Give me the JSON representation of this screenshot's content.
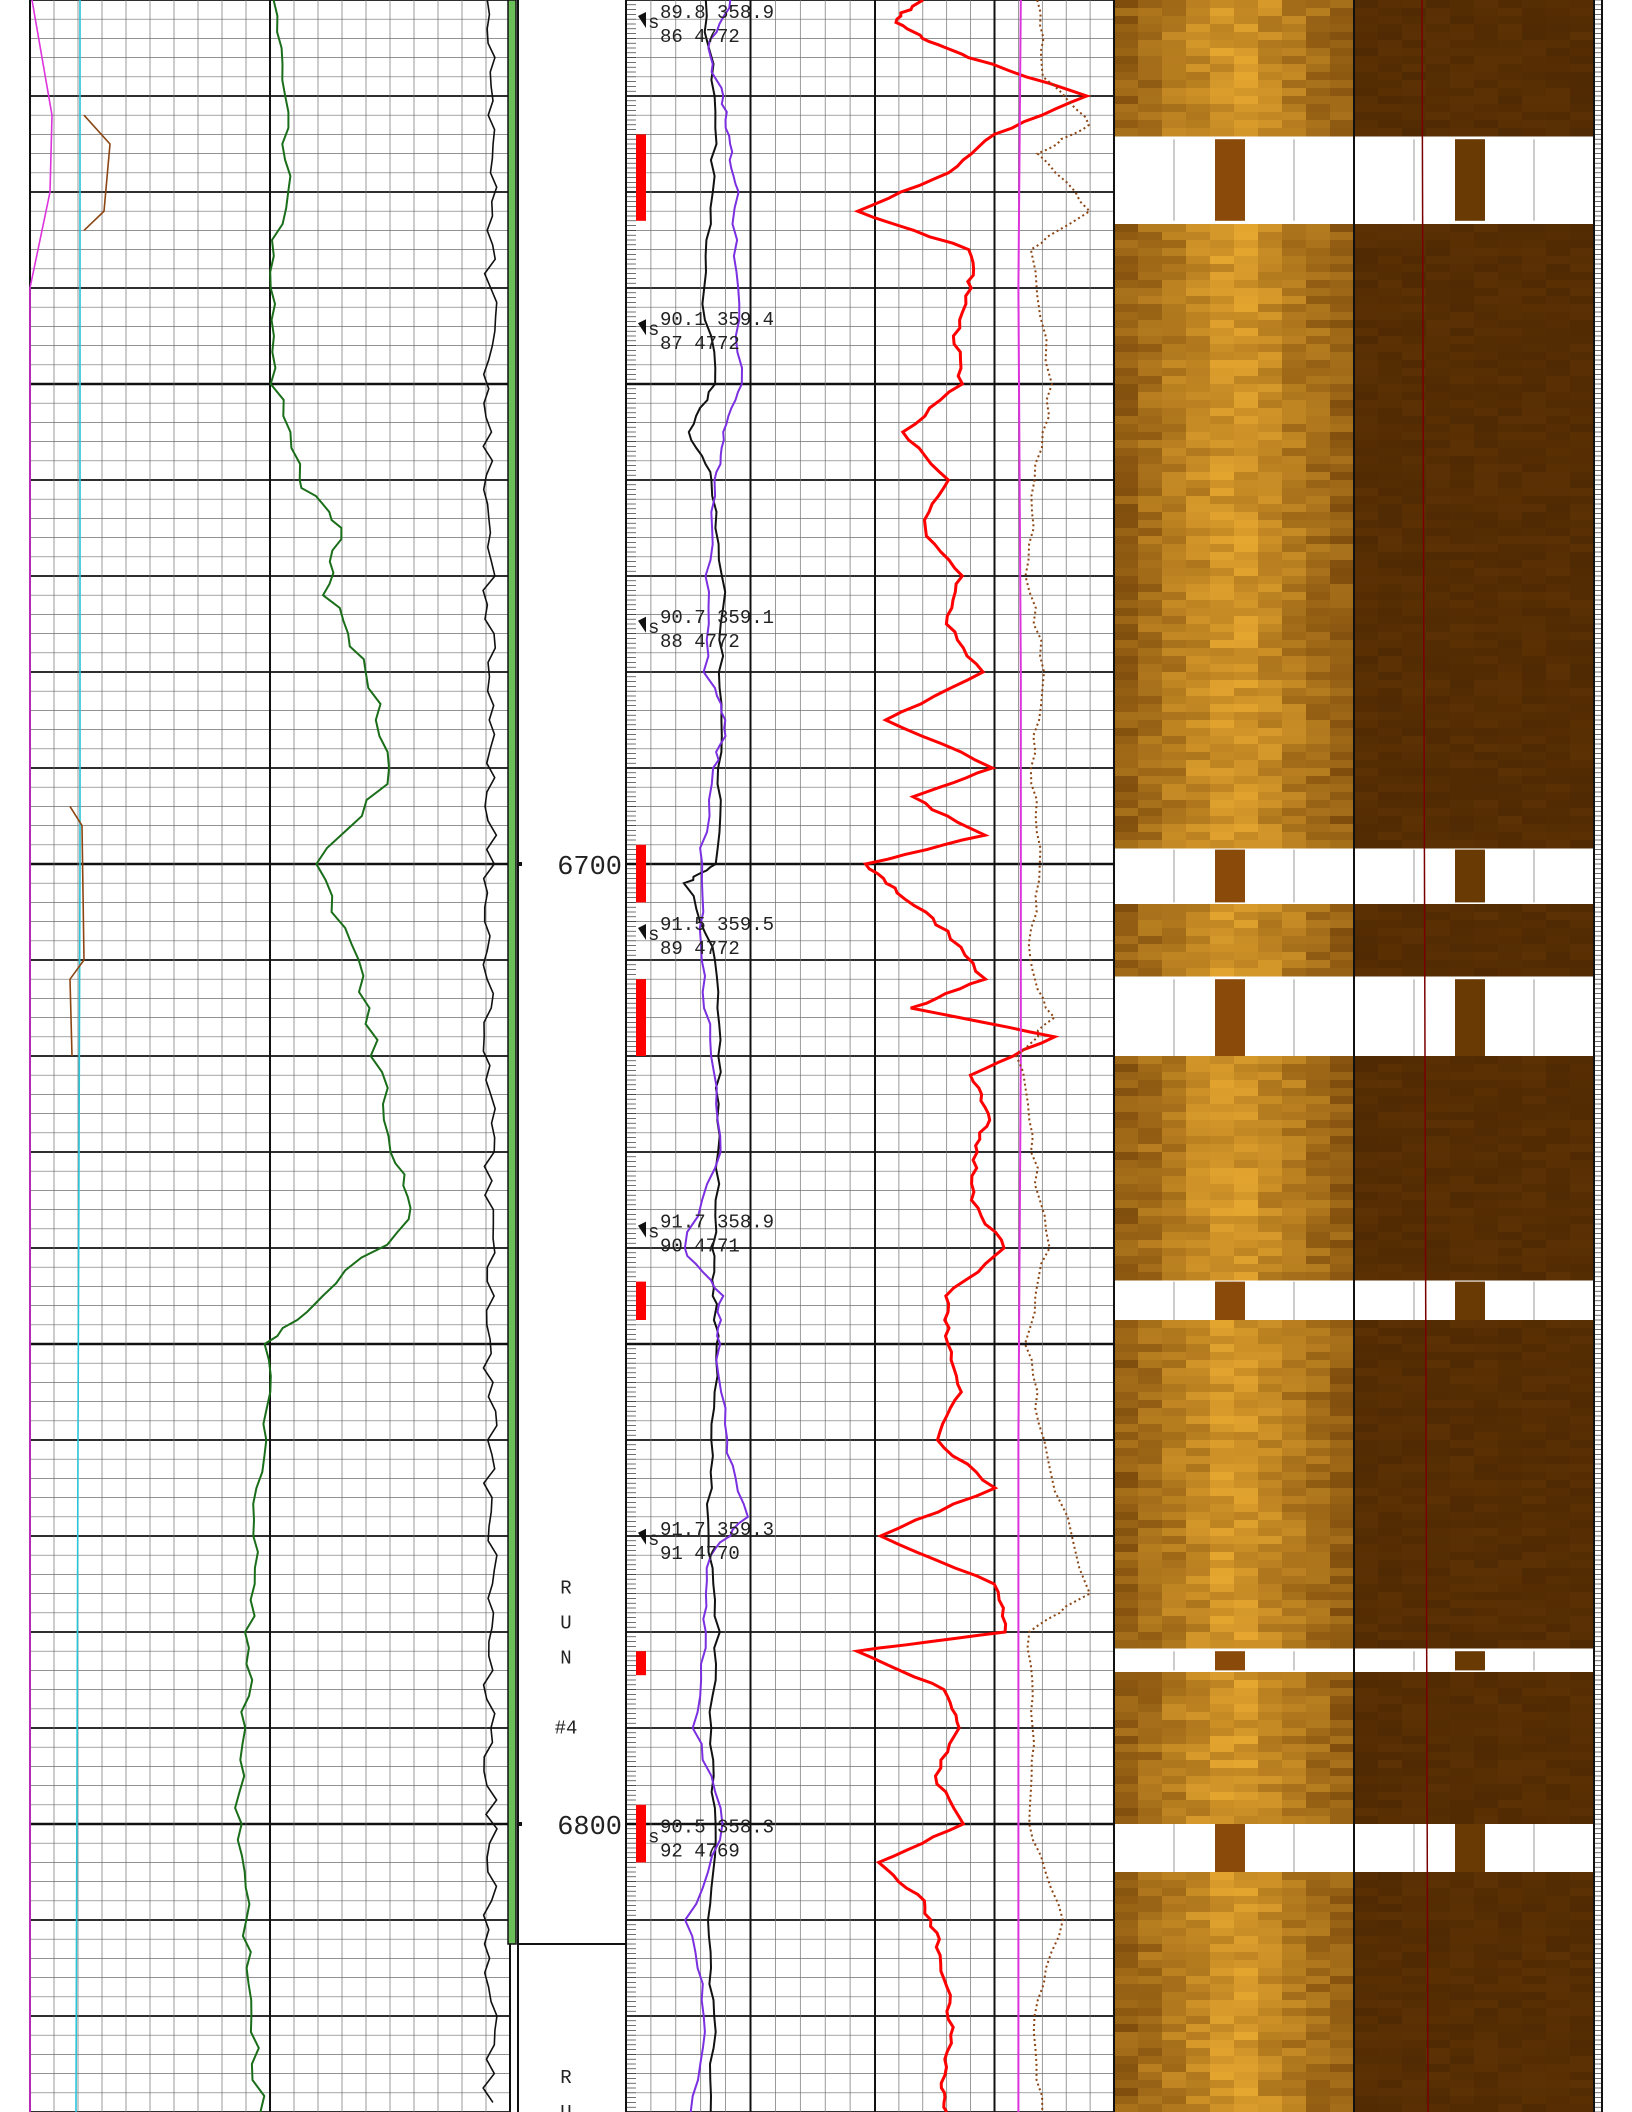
{
  "chart_data": {
    "type": "line",
    "title": "",
    "depth_range": [
      6610,
      6830
    ],
    "depth_labels": [
      {
        "depth": 6700,
        "text": "6700"
      },
      {
        "depth": 6800,
        "text": "6800"
      }
    ],
    "run_labels": [
      {
        "depth": 6776,
        "text": [
          "R",
          "U",
          "N",
          "",
          "#4"
        ]
      },
      {
        "depth": 6827,
        "text": [
          "R",
          "U"
        ]
      }
    ],
    "run_boundary_depth": 6812.5,
    "surveys": [
      {
        "depth": 6612.5,
        "incl": "89.8",
        "azim": "358.9",
        "num": "86",
        "tvd": "4772"
      },
      {
        "depth": 6644.5,
        "incl": "90.1",
        "azim": "359.4",
        "num": "87",
        "tvd": "4772"
      },
      {
        "depth": 6675.5,
        "incl": "90.7",
        "azim": "359.1",
        "num": "88",
        "tvd": "4772"
      },
      {
        "depth": 6707.5,
        "incl": "91.5",
        "azim": "359.5",
        "num": "89",
        "tvd": "4772"
      },
      {
        "depth": 6738.5,
        "incl": "91.7",
        "azim": "358.9",
        "num": "90",
        "tvd": "4771"
      },
      {
        "depth": 6770.5,
        "incl": "91.7",
        "azim": "359.3",
        "num": "91",
        "tvd": "4770"
      },
      {
        "depth": 6801.5,
        "incl": "90.5",
        "azim": "358.3",
        "num": "92",
        "tvd": "4769"
      }
    ],
    "flag_intervals": [
      [
        6624,
        6633
      ],
      [
        6698,
        6704
      ],
      [
        6712,
        6720
      ],
      [
        6743.5,
        6747.5
      ],
      [
        6782,
        6784.5
      ],
      [
        6798,
        6804
      ]
    ],
    "image_gaps": [
      [
        6624.5,
        6633
      ],
      [
        6698.5,
        6704
      ],
      [
        6712,
        6720
      ],
      [
        6743.5,
        6747.5
      ],
      [
        6782,
        6784
      ],
      [
        6800,
        6805
      ]
    ],
    "colors": {
      "grid": "#6f6f6f",
      "grid_major": "#111111",
      "gamma_green": "#1a6e1a",
      "cyan": "#28c4d8",
      "magenta": "#dd33dd",
      "brown": "#8b4513",
      "red": "#ff0000",
      "purple": "#7a2fe0",
      "black": "#111111",
      "image_dark": "#6a3a05",
      "image_light": "#f5b435"
    },
    "series": [
      {
        "track": 1,
        "color": "#1a6e1a",
        "values": [
          [
            6610,
            5.2
          ],
          [
            6620,
            5.4
          ],
          [
            6630,
            5.3
          ],
          [
            6640,
            5.0
          ],
          [
            6650,
            5.1
          ],
          [
            6660,
            5.6
          ],
          [
            6665,
            6.5
          ],
          [
            6672,
            6.2
          ],
          [
            6680,
            7.0
          ],
          [
            6690,
            7.6
          ],
          [
            6700,
            6.0
          ],
          [
            6710,
            6.8
          ],
          [
            6720,
            7.2
          ],
          [
            6730,
            7.6
          ],
          [
            6737,
            8.0
          ],
          [
            6745,
            6.0
          ],
          [
            6750,
            5.0
          ],
          [
            6760,
            4.8
          ],
          [
            6770,
            4.7
          ],
          [
            6780,
            4.6
          ],
          [
            6790,
            4.5
          ],
          [
            6800,
            4.3
          ],
          [
            6810,
            4.5
          ],
          [
            6820,
            4.6
          ],
          [
            6830,
            4.8
          ]
        ]
      },
      {
        "track": 2,
        "color": "#111111",
        "values": [
          [
            6610,
            3.1
          ],
          [
            6620,
            3.6
          ],
          [
            6630,
            3.5
          ],
          [
            6640,
            3.1
          ],
          [
            6650,
            3.6
          ],
          [
            6655,
            2.4
          ],
          [
            6660,
            3.5
          ],
          [
            6670,
            3.9
          ],
          [
            6680,
            3.8
          ],
          [
            6690,
            3.8
          ],
          [
            6700,
            3.6
          ],
          [
            6702,
            2.4
          ],
          [
            6710,
            3.6
          ],
          [
            6720,
            3.7
          ],
          [
            6730,
            3.7
          ],
          [
            6740,
            3.5
          ],
          [
            6745,
            3.6
          ],
          [
            6750,
            3.7
          ],
          [
            6760,
            3.5
          ],
          [
            6770,
            3.3
          ],
          [
            6780,
            3.7
          ],
          [
            6790,
            3.4
          ],
          [
            6800,
            3.5
          ],
          [
            6810,
            3.4
          ],
          [
            6820,
            3.5
          ],
          [
            6830,
            3.4
          ]
        ]
      },
      {
        "track": 2,
        "color": "#7a2fe0",
        "values": [
          [
            6610,
            4.3
          ],
          [
            6615,
            3.3
          ],
          [
            6620,
            3.8
          ],
          [
            6625,
            4.2
          ],
          [
            6630,
            4.4
          ],
          [
            6640,
            4.4
          ],
          [
            6650,
            4.6
          ],
          [
            6655,
            4.0
          ],
          [
            6660,
            3.6
          ],
          [
            6670,
            3.3
          ],
          [
            6680,
            3.2
          ],
          [
            6685,
            4.1
          ],
          [
            6690,
            3.5
          ],
          [
            6700,
            3.0
          ],
          [
            6710,
            3.1
          ],
          [
            6720,
            3.4
          ],
          [
            6730,
            3.8
          ],
          [
            6740,
            2.3
          ],
          [
            6745,
            3.8
          ],
          [
            6750,
            3.7
          ],
          [
            6760,
            4.0
          ],
          [
            6768,
            4.9
          ],
          [
            6772,
            3.3
          ],
          [
            6780,
            3.2
          ],
          [
            6790,
            2.8
          ],
          [
            6800,
            3.9
          ],
          [
            6810,
            2.5
          ],
          [
            6820,
            3.2
          ],
          [
            6830,
            2.6
          ]
        ]
      },
      {
        "track": 3,
        "color": "#ff0000",
        "values": [
          [
            6610,
            2.0
          ],
          [
            6612,
            0.8
          ],
          [
            6614,
            2.0
          ],
          [
            6616,
            4.0
          ],
          [
            6620,
            8.8
          ],
          [
            6624,
            5.0
          ],
          [
            6628,
            3.0
          ],
          [
            6632,
            -0.8
          ],
          [
            6636,
            4.0
          ],
          [
            6640,
            4.0
          ],
          [
            6645,
            3.4
          ],
          [
            6650,
            3.6
          ],
          [
            6655,
            1.2
          ],
          [
            6660,
            3.0
          ],
          [
            6665,
            2.0
          ],
          [
            6670,
            3.6
          ],
          [
            6675,
            3.0
          ],
          [
            6680,
            4.4
          ],
          [
            6685,
            0.5
          ],
          [
            6690,
            5.0
          ],
          [
            6693,
            1.5
          ],
          [
            6697,
            4.5
          ],
          [
            6700,
            -0.4
          ],
          [
            6703,
            1.0
          ],
          [
            6707,
            3.0
          ],
          [
            6712,
            4.5
          ],
          [
            6715,
            1.6
          ],
          [
            6718,
            7.5
          ],
          [
            6722,
            4.0
          ],
          [
            6726,
            4.8
          ],
          [
            6730,
            4.2
          ],
          [
            6735,
            4.0
          ],
          [
            6740,
            5.4
          ],
          [
            6745,
            3.0
          ],
          [
            6750,
            3.0
          ],
          [
            6755,
            3.6
          ],
          [
            6760,
            2.5
          ],
          [
            6765,
            5.0
          ],
          [
            6770,
            0.2
          ],
          [
            6775,
            5.0
          ],
          [
            6780,
            5.5
          ],
          [
            6782,
            -0.8
          ],
          [
            6786,
            3.0
          ],
          [
            6790,
            3.5
          ],
          [
            6795,
            2.5
          ],
          [
            6800,
            3.6
          ],
          [
            6804,
            0.2
          ],
          [
            6808,
            2.0
          ],
          [
            6812,
            2.6
          ],
          [
            6817,
            3.0
          ],
          [
            6822,
            3.2
          ],
          [
            6827,
            2.8
          ],
          [
            6830,
            3.0
          ]
        ]
      },
      {
        "track": 3,
        "color": "#dd33dd",
        "values": [
          [
            6610,
            6.1
          ],
          [
            6640,
            6.0
          ],
          [
            6680,
            6.1
          ],
          [
            6720,
            6.1
          ],
          [
            6760,
            6.0
          ],
          [
            6800,
            6.0
          ],
          [
            6830,
            6.0
          ]
        ]
      },
      {
        "track": 3,
        "color": "#8b4513",
        "dotted": true,
        "values": [
          [
            6610,
            6.8
          ],
          [
            6618,
            7.1
          ],
          [
            6623,
            9.0
          ],
          [
            6626,
            6.8
          ],
          [
            6632,
            9.0
          ],
          [
            6636,
            6.5
          ],
          [
            6650,
            7.4
          ],
          [
            6660,
            6.7
          ],
          [
            6670,
            6.4
          ],
          [
            6680,
            7.1
          ],
          [
            6690,
            6.5
          ],
          [
            6700,
            7.0
          ],
          [
            6710,
            6.4
          ],
          [
            6716,
            7.4
          ],
          [
            6720,
            6.0
          ],
          [
            6730,
            6.6
          ],
          [
            6740,
            7.2
          ],
          [
            6750,
            6.4
          ],
          [
            6760,
            7.0
          ],
          [
            6776,
            8.9
          ],
          [
            6780,
            6.4
          ],
          [
            6790,
            6.7
          ],
          [
            6800,
            6.5
          ],
          [
            6810,
            7.8
          ],
          [
            6820,
            6.6
          ],
          [
            6830,
            7.0
          ]
        ]
      }
    ]
  }
}
